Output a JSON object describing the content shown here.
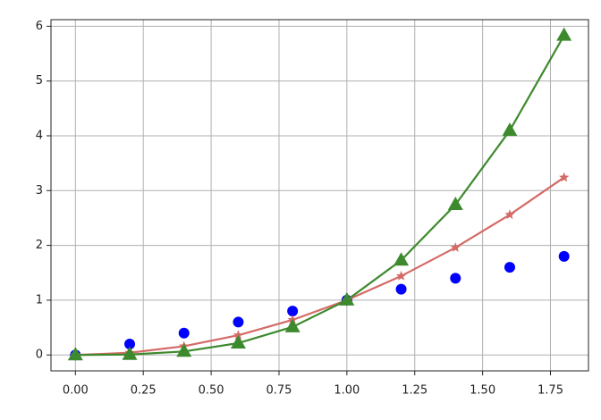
{
  "chart_data": {
    "type": "line",
    "x": [
      0,
      0.2,
      0.4,
      0.6,
      0.8,
      1.0,
      1.2,
      1.4,
      1.6,
      1.8
    ],
    "series": [
      {
        "color": "#0000ff",
        "marker": "circle",
        "line": false,
        "values": [
          0,
          0.2,
          0.4,
          0.6,
          0.8,
          1.0,
          1.2,
          1.4,
          1.6,
          1.8
        ]
      },
      {
        "color": "#d46a66",
        "marker": "star",
        "line": true,
        "values": [
          0,
          0.04,
          0.16,
          0.36,
          0.64,
          1.0,
          1.44,
          1.96,
          2.56,
          3.24
        ]
      },
      {
        "color": "#3d8a2e",
        "marker": "triangle",
        "line": true,
        "values": [
          0,
          0.008,
          0.064,
          0.216,
          0.512,
          1.0,
          1.728,
          2.744,
          4.096,
          5.832
        ]
      }
    ],
    "xlim": [
      -0.09,
      1.89
    ],
    "ylim": [
      -0.29,
      6.12
    ],
    "xticks": [
      {
        "value": 0,
        "label": "0.00"
      },
      {
        "value": 0.25,
        "label": "0.25"
      },
      {
        "value": 0.5,
        "label": "0.50"
      },
      {
        "value": 0.75,
        "label": "0.75"
      },
      {
        "value": 1.0,
        "label": "1.00"
      },
      {
        "value": 1.25,
        "label": "1.25"
      },
      {
        "value": 1.5,
        "label": "1.50"
      },
      {
        "value": 1.75,
        "label": "1.75"
      }
    ],
    "yticks": [
      0,
      1,
      2,
      3,
      4,
      5,
      6
    ],
    "grid": true
  }
}
